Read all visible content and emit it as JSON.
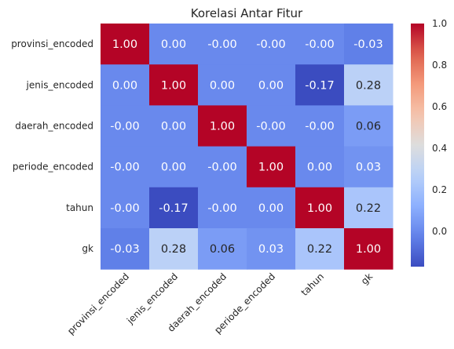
{
  "chart_data": {
    "type": "heatmap",
    "title": "Korelasi Antar Fitur",
    "xlabel": "",
    "ylabel": "",
    "row_labels": [
      "provinsi_encoded",
      "jenis_encoded",
      "daerah_encoded",
      "periode_encoded",
      "tahun",
      "gk"
    ],
    "col_labels": [
      "provinsi_encoded",
      "jenis_encoded",
      "daerah_encoded",
      "periode_encoded",
      "tahun",
      "gk"
    ],
    "values": [
      [
        1.0,
        0.0,
        -0.0,
        -0.0,
        -0.0,
        -0.03
      ],
      [
        0.0,
        1.0,
        0.0,
        0.0,
        -0.17,
        0.28
      ],
      [
        -0.0,
        0.0,
        1.0,
        -0.0,
        -0.0,
        0.06
      ],
      [
        -0.0,
        0.0,
        -0.0,
        1.0,
        0.0,
        0.03
      ],
      [
        -0.0,
        -0.17,
        -0.0,
        0.0,
        1.0,
        0.22
      ],
      [
        -0.03,
        0.28,
        0.06,
        0.03,
        0.22,
        1.0
      ]
    ],
    "cell_text": [
      [
        "1.00",
        "0.00",
        "-0.00",
        "-0.00",
        "-0.00",
        "-0.03"
      ],
      [
        "0.00",
        "1.00",
        "0.00",
        "0.00",
        "-0.17",
        "0.28"
      ],
      [
        "-0.00",
        "0.00",
        "1.00",
        "-0.00",
        "-0.00",
        "0.06"
      ],
      [
        "-0.00",
        "0.00",
        "-0.00",
        "1.00",
        "0.00",
        "0.03"
      ],
      [
        "-0.00",
        "-0.17",
        "-0.00",
        "0.00",
        "1.00",
        "0.22"
      ],
      [
        "-0.03",
        "0.28",
        "0.06",
        "0.03",
        "0.22",
        "1.00"
      ]
    ],
    "colormap": "coolwarm",
    "vmin": -0.17,
    "vmax": 1.0,
    "colorbar_ticks": [
      "0.0",
      "0.2",
      "0.4",
      "0.6",
      "0.8",
      "1.0"
    ],
    "colorbar_tick_values": [
      0.0,
      0.2,
      0.4,
      0.6,
      0.8,
      1.0
    ],
    "grid": false,
    "colorbar_position": "right"
  }
}
